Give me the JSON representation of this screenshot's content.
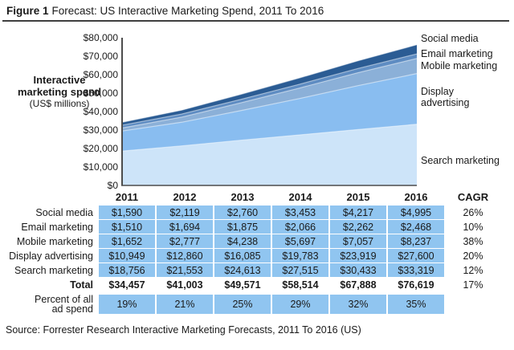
{
  "header": {
    "figure_label": "Figure 1",
    "title": "Forecast: US Interactive Marketing Spend, 2011 To 2016"
  },
  "chart": {
    "ylabel_main": "Interactive marketing spend",
    "ylabel_sub": "(US$ millions)",
    "yticks": [
      "$80,000",
      "$70,000",
      "$60,000",
      "$50,000",
      "$40,000",
      "$30,000",
      "$20,000",
      "$10,000",
      "$0"
    ]
  },
  "chart_data": {
    "type": "area",
    "stacked": true,
    "title": "Forecast: US Interactive Marketing Spend, 2011 To 2016",
    "xlabel": "",
    "ylabel": "Interactive marketing spend (US$ millions)",
    "x": [
      2011,
      2012,
      2013,
      2014,
      2015,
      2016
    ],
    "ylim": [
      0,
      80000
    ],
    "grid": false,
    "legend_position": "right",
    "series": [
      {
        "name": "Search marketing",
        "color": "#cde4f9",
        "values": [
          18756,
          21553,
          24613,
          27515,
          30433,
          33319
        ]
      },
      {
        "name": "Display advertising",
        "color": "#89bdf0",
        "values": [
          10949,
          12860,
          16085,
          19783,
          23919,
          27600
        ]
      },
      {
        "name": "Mobile marketing",
        "color": "#8bb0d8",
        "values": [
          1652,
          2777,
          4238,
          5697,
          7057,
          8237
        ]
      },
      {
        "name": "Email marketing",
        "color": "#5e8cc2",
        "values": [
          1510,
          1694,
          1875,
          2066,
          2262,
          2468
        ]
      },
      {
        "name": "Social media",
        "color": "#2b5c94",
        "values": [
          1590,
          2119,
          2760,
          3453,
          4217,
          4995
        ]
      }
    ]
  },
  "table": {
    "col_headers": [
      "2011",
      "2012",
      "2013",
      "2014",
      "2015",
      "2016",
      "CAGR"
    ],
    "rows": [
      {
        "label": "Social media",
        "values": [
          "$1,590",
          "$2,119",
          "$2,760",
          "$3,453",
          "$4,217",
          "$4,995"
        ],
        "cagr": "26%"
      },
      {
        "label": "Email marketing",
        "values": [
          "$1,510",
          "$1,694",
          "$1,875",
          "$2,066",
          "$2,262",
          "$2,468"
        ],
        "cagr": "10%"
      },
      {
        "label": "Mobile marketing",
        "values": [
          "$1,652",
          "$2,777",
          "$4,238",
          "$5,697",
          "$7,057",
          "$8,237"
        ],
        "cagr": "38%"
      },
      {
        "label": "Display advertising",
        "values": [
          "$10,949",
          "$12,860",
          "$16,085",
          "$19,783",
          "$23,919",
          "$27,600"
        ],
        "cagr": "20%"
      },
      {
        "label": "Search marketing",
        "values": [
          "$18,756",
          "$21,553",
          "$24,613",
          "$27,515",
          "$30,433",
          "$33,319"
        ],
        "cagr": "12%"
      }
    ],
    "total_row": {
      "label": "Total",
      "values": [
        "$34,457",
        "$41,003",
        "$49,571",
        "$58,514",
        "$67,888",
        "$76,619"
      ],
      "cagr": "17%"
    },
    "percent_row": {
      "label": "Percent of all ad spend",
      "values": [
        "19%",
        "21%",
        "25%",
        "29%",
        "32%",
        "35%"
      ],
      "cagr": ""
    }
  },
  "source": "Source: Forrester Research Interactive Marketing Forecasts, 2011 To 2016 (US)",
  "colors": {
    "table_cell": "#90c5f0",
    "axis": "#4d4d4d",
    "rule": "#3f3f3f",
    "band_highlight": "rgba(255,255,255,0.5)"
  }
}
